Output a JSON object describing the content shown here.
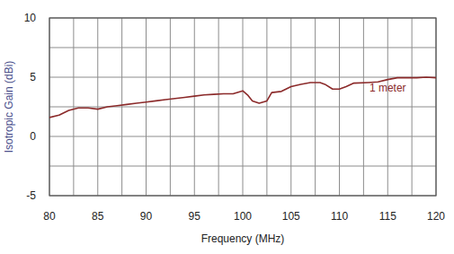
{
  "chart_data": {
    "type": "line",
    "x_label": "Frequency (MHz)",
    "y_label": "Isotropic Gain (dBi)",
    "x": [
      80,
      81,
      82,
      83,
      84,
      85,
      86,
      87,
      88,
      89,
      90,
      91,
      92,
      93,
      94,
      95,
      96,
      97,
      98,
      99,
      100,
      100.5,
      101,
      101.7,
      102.5,
      103,
      104,
      105,
      106,
      107,
      108,
      108.5,
      109.3,
      110,
      110.7,
      111.5,
      113,
      114,
      115,
      116,
      117,
      118,
      119,
      120
    ],
    "values": [
      1.6,
      1.8,
      2.2,
      2.4,
      2.4,
      2.3,
      2.5,
      2.6,
      2.7,
      2.8,
      2.9,
      3.0,
      3.1,
      3.2,
      3.3,
      3.4,
      3.5,
      3.55,
      3.6,
      3.6,
      3.85,
      3.5,
      3.0,
      2.8,
      3.0,
      3.7,
      3.8,
      4.2,
      4.4,
      4.55,
      4.55,
      4.4,
      4.0,
      4.0,
      4.2,
      4.5,
      4.55,
      4.6,
      4.8,
      4.95,
      4.95,
      4.95,
      5.0,
      4.95
    ],
    "color": "#8b2a2a",
    "xlim": [
      80,
      120
    ],
    "xticks": [
      80,
      85,
      90,
      95,
      100,
      105,
      110,
      115,
      120
    ],
    "x_minor_ticks": [
      82.5,
      87.5,
      92.5,
      97.5,
      102.5,
      107.5,
      112.5,
      117.5
    ],
    "ylim": [
      -5,
      10
    ],
    "yticks": [
      -5,
      0,
      5,
      10
    ],
    "y_minor_ticks": [
      -2.5,
      2.5,
      7.5
    ],
    "grid": true,
    "annotations": [
      {
        "text": "1 meter",
        "x": 115,
        "y": 3.8
      }
    ]
  }
}
